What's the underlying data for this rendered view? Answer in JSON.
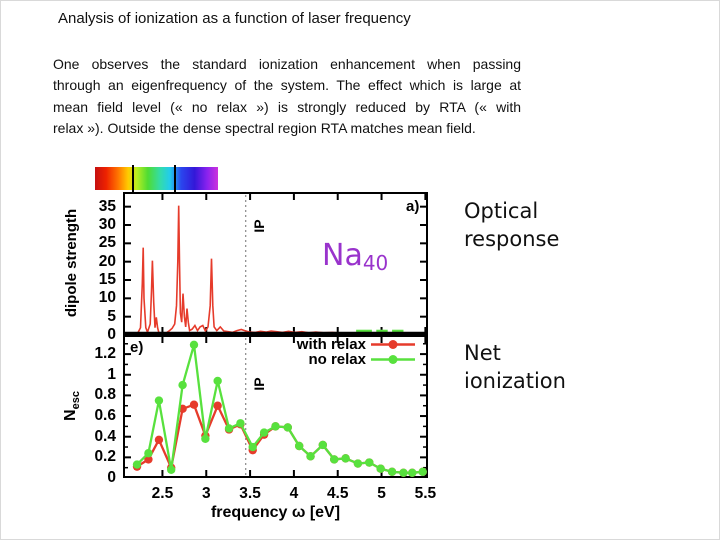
{
  "slide": {
    "title": "Analysis of ionization as a function of laser frequency",
    "paragraph_lines": [
      "One observes the standard ionization enhancement when passing",
      "through an eigenfrequency of the system. The effect which is large at",
      "mean field level (« no relax ») is strongly reduced by RTA (« with",
      "relax »). Outside the dense spectral region RTA matches mean field."
    ],
    "side_annotations": {
      "optical_line1": "Optical",
      "optical_line2": "response",
      "net_line1": "Net",
      "net_line2": "ionization"
    }
  },
  "colors": {
    "series_red": "#e63b2b",
    "series_green": "#58e13e",
    "na_purple": "#9933cc",
    "ip_line": "#888888"
  },
  "chart_data": [
    {
      "type": "line",
      "panel_label": "a)",
      "ylabel": "dipole strength",
      "annotation": {
        "text": "Na",
        "sub": "40"
      },
      "ip": {
        "x": 3.45,
        "label": "IP"
      },
      "xlim": [
        2.05,
        5.53
      ],
      "ylim": [
        0,
        39
      ],
      "yticks": [
        0,
        5,
        10,
        15,
        20,
        25,
        30,
        35
      ],
      "xticks": [
        2.5,
        3,
        3.5,
        4,
        4.5,
        5,
        5.5
      ],
      "grid": false,
      "series": [
        {
          "name": "dipole strength spectrum",
          "color": "#e63b2b",
          "points": [
            [
              2.05,
              0.15
            ],
            [
              2.1,
              0.2
            ],
            [
              2.14,
              0.4
            ],
            [
              2.18,
              0.3
            ],
            [
              2.22,
              0.6
            ],
            [
              2.25,
              2
            ],
            [
              2.27,
              14
            ],
            [
              2.28,
              23.8
            ],
            [
              2.29,
              10
            ],
            [
              2.31,
              2
            ],
            [
              2.33,
              0.8
            ],
            [
              2.36,
              3
            ],
            [
              2.375,
              12
            ],
            [
              2.385,
              20.3
            ],
            [
              2.4,
              9
            ],
            [
              2.415,
              2
            ],
            [
              2.43,
              4.8
            ],
            [
              2.445,
              2
            ],
            [
              2.46,
              0.6
            ],
            [
              2.5,
              0.4
            ],
            [
              2.54,
              0.5
            ],
            [
              2.58,
              1.2
            ],
            [
              2.61,
              1.8
            ],
            [
              2.64,
              3
            ],
            [
              2.66,
              8
            ],
            [
              2.675,
              20
            ],
            [
              2.685,
              35.3
            ],
            [
              2.695,
              20
            ],
            [
              2.705,
              6
            ],
            [
              2.72,
              3.5
            ],
            [
              2.735,
              11.3
            ],
            [
              2.75,
              5
            ],
            [
              2.765,
              2.2
            ],
            [
              2.78,
              7.2
            ],
            [
              2.795,
              3.5
            ],
            [
              2.81,
              1.2
            ],
            [
              2.84,
              1.6
            ],
            [
              2.87,
              2.6
            ],
            [
              2.9,
              1.2
            ],
            [
              2.93,
              2.2
            ],
            [
              2.96,
              2.6
            ],
            [
              2.99,
              1.1
            ],
            [
              3.02,
              2.2
            ],
            [
              3.045,
              8
            ],
            [
              3.06,
              20.8
            ],
            [
              3.075,
              8
            ],
            [
              3.09,
              2.2
            ],
            [
              3.12,
              1.2
            ],
            [
              3.16,
              2.2
            ],
            [
              3.2,
              1.1
            ],
            [
              3.25,
              0.9
            ],
            [
              3.3,
              0.7
            ],
            [
              3.35,
              1.2
            ],
            [
              3.4,
              1.5
            ],
            [
              3.45,
              1.1
            ],
            [
              3.5,
              0.8
            ],
            [
              3.56,
              0.7
            ],
            [
              3.62,
              1.0
            ],
            [
              3.68,
              0.8
            ],
            [
              3.74,
              1.1
            ],
            [
              3.8,
              0.9
            ],
            [
              3.87,
              0.7
            ],
            [
              3.94,
              1.0
            ],
            [
              4.01,
              0.7
            ],
            [
              4.09,
              0.9
            ],
            [
              4.17,
              0.6
            ],
            [
              4.25,
              0.8
            ],
            [
              4.34,
              0.6
            ],
            [
              4.44,
              0.7
            ],
            [
              4.54,
              0.5
            ],
            [
              4.64,
              0.6
            ],
            [
              4.74,
              0.5
            ],
            [
              4.84,
              0.6
            ],
            [
              4.94,
              0.4
            ],
            [
              5.04,
              0.5
            ],
            [
              5.14,
              0.4
            ],
            [
              5.24,
              0.5
            ],
            [
              5.34,
              0.4
            ],
            [
              5.44,
              0.4
            ],
            [
              5.53,
              0.4
            ]
          ]
        }
      ],
      "baseline_marks": {
        "color": "#58e13e",
        "y": 1.1,
        "segments": [
          [
            4.71,
            4.89
          ],
          [
            4.94,
            5.07
          ],
          [
            5.12,
            5.25
          ]
        ]
      }
    },
    {
      "type": "line",
      "panel_label": "e)",
      "ylabel": {
        "text": "N",
        "sub": "esc"
      },
      "xlabel": "frequency ω [eV]",
      "ip": {
        "x": 3.45,
        "label": "IP"
      },
      "xlim": [
        2.05,
        5.53
      ],
      "ylim": [
        0,
        1.385
      ],
      "yticks": [
        0,
        0.2,
        0.4,
        0.6,
        0.8,
        1,
        1.2
      ],
      "yminor": 0.1,
      "xticks": [
        2.5,
        3,
        3.5,
        4,
        4.5,
        5,
        5.5
      ],
      "grid": false,
      "legend_position": "top-right-inside",
      "x": [
        2.21,
        2.34,
        2.46,
        2.6,
        2.73,
        2.86,
        2.99,
        3.13,
        3.26,
        3.39,
        3.53,
        3.66,
        3.79,
        3.93,
        4.06,
        4.19,
        4.33,
        4.46,
        4.59,
        4.73,
        4.86,
        4.99,
        5.12,
        5.25,
        5.35,
        5.47
      ],
      "series": [
        {
          "name": "with relax",
          "color": "#e63b2b",
          "values": [
            0.11,
            0.18,
            0.37,
            0.1,
            0.67,
            0.71,
            0.41,
            0.7,
            0.47,
            0.52,
            0.27,
            0.42,
            0.5,
            0.49,
            0.31,
            0.21,
            0.32,
            0.18,
            0.19,
            0.14,
            0.15,
            0.09,
            0.06,
            0.05,
            0.05,
            0.06
          ]
        },
        {
          "name": "no relax",
          "color": "#58e13e",
          "values": [
            0.13,
            0.24,
            0.75,
            0.08,
            0.9,
            1.29,
            0.38,
            0.94,
            0.48,
            0.53,
            0.3,
            0.44,
            0.5,
            0.49,
            0.31,
            0.21,
            0.32,
            0.18,
            0.19,
            0.14,
            0.15,
            0.09,
            0.06,
            0.05,
            0.05,
            0.06
          ]
        }
      ]
    }
  ]
}
